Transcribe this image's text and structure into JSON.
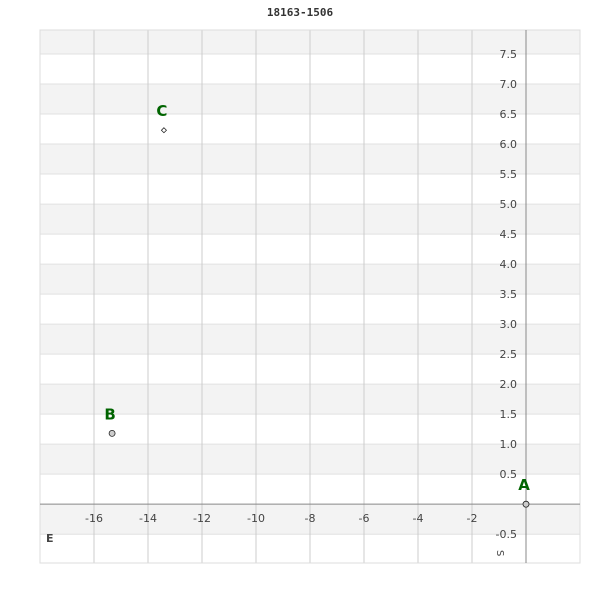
{
  "chart_data": {
    "type": "scatter",
    "title": "18163-1506",
    "xlim": [
      -18,
      2
    ],
    "ylim": [
      -0.98,
      7.9
    ],
    "x_ticks": [
      -16,
      -14,
      -12,
      -10,
      -8,
      -6,
      -4,
      -2
    ],
    "y_ticks": [
      -0.5,
      0.5,
      1.0,
      1.5,
      2.0,
      2.5,
      3.0,
      3.5,
      4.0,
      4.5,
      5.0,
      5.5,
      6.0,
      6.5,
      7.0,
      7.5
    ],
    "grid": true,
    "points": [
      {
        "label": "A",
        "x": 0,
        "y": 0,
        "marker": "circle"
      },
      {
        "label": "B",
        "x": -15.33,
        "y": 1.18,
        "marker": "circle"
      },
      {
        "label": "C",
        "x": -13.41,
        "y": 6.23,
        "marker": "diamond"
      }
    ],
    "axis_labels": {
      "x_end": "E",
      "y_end": "S"
    },
    "colors": {
      "label": "#006400",
      "band": "#f3f3f3",
      "grid": "#cccccc",
      "axis": "#888888"
    }
  }
}
